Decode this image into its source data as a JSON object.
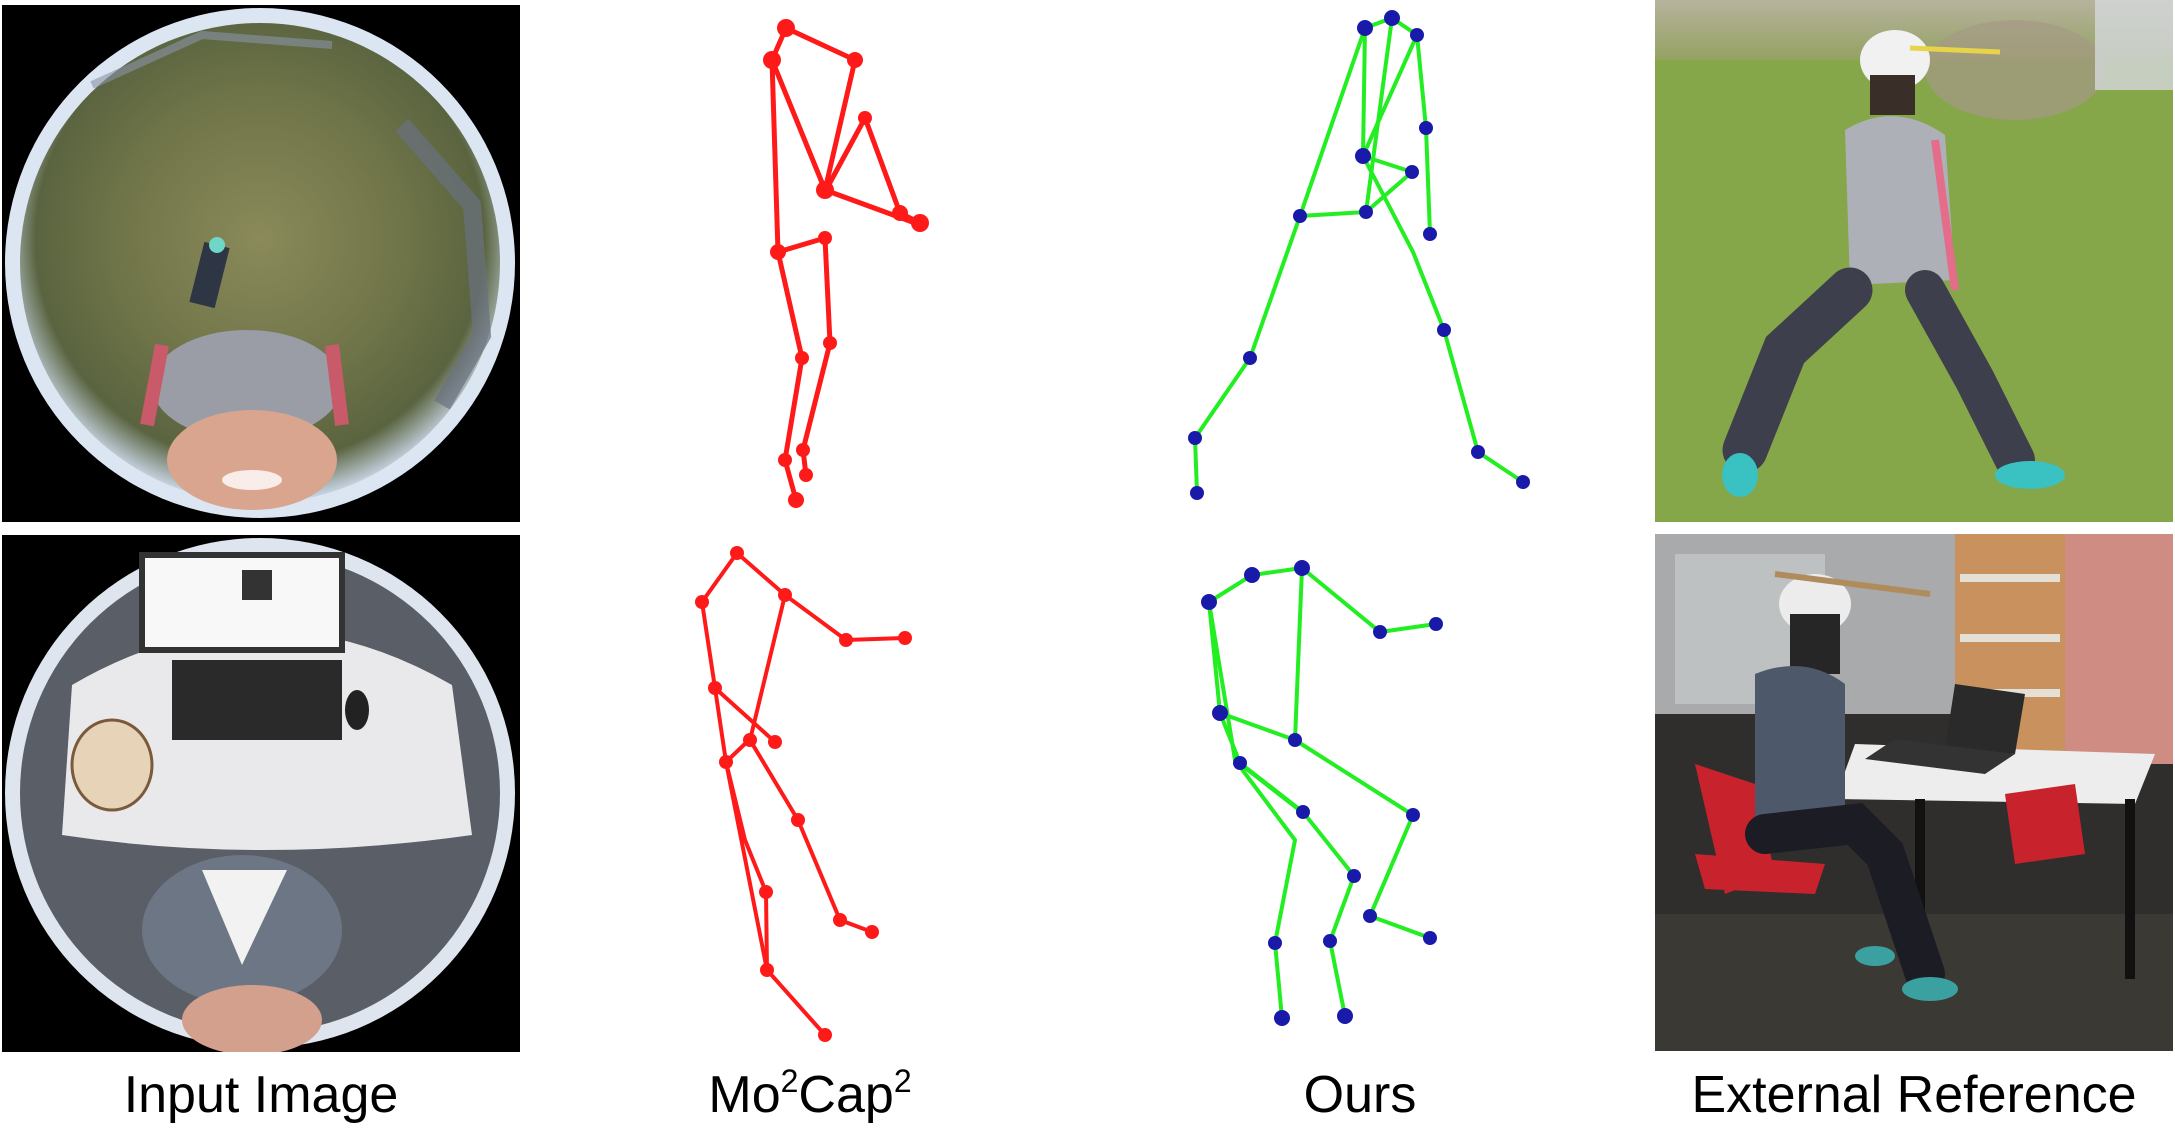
{
  "captions": {
    "input": "Input Image",
    "baseline_main": "Mo",
    "baseline_sup1": "2",
    "baseline_mid": "Cap",
    "baseline_sup2": "2",
    "ours": "Ours",
    "reference": "External Reference"
  },
  "colors": {
    "baseline_skeleton": "#ff1a1a",
    "ours_bone": "#22ee22",
    "ours_joint": "#1a1aaa",
    "fisheye_border": "#000000"
  },
  "icons": [
    "fisheye-outdoor-photo",
    "fisheye-indoor-photo",
    "outdoor-reference-photo",
    "indoor-reference-photo"
  ]
}
